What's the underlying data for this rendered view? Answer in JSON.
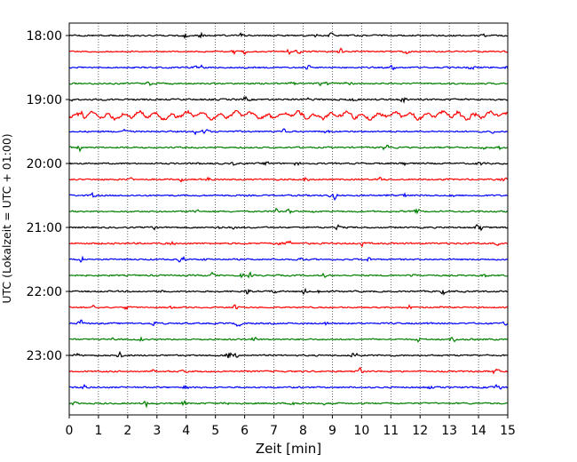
{
  "chart_data": {
    "type": "line",
    "title": "",
    "xlabel": "Zeit  [min]",
    "ylabel": "UTC (Lokalzeit = UTC + 01:00)",
    "xlim": [
      0,
      15
    ],
    "x_ticks": [
      "0",
      "1",
      "2",
      "3",
      "4",
      "5",
      "6",
      "7",
      "8",
      "9",
      "10",
      "11",
      "12",
      "13",
      "14",
      "15"
    ],
    "y_ticks": [
      "18:00",
      "19:00",
      "20:00",
      "21:00",
      "22:00",
      "23:00"
    ],
    "grid": "vertical dotted lines at each minute",
    "trace_interval_minutes": 15,
    "trace_colors": [
      "#000000",
      "#ff0000",
      "#0000ff",
      "#008000"
    ],
    "trace_start_times": [
      "18:00",
      "18:15",
      "18:30",
      "18:45",
      "19:00",
      "19:15",
      "19:30",
      "19:45",
      "20:00",
      "20:15",
      "20:30",
      "20:45",
      "21:00",
      "21:15",
      "21:30",
      "21:45",
      "22:00",
      "22:15",
      "22:30",
      "22:45",
      "23:00",
      "23:15",
      "23:30",
      "23:45"
    ],
    "noise_level": [
      0.45,
      0.4,
      0.45,
      0.45,
      0.5,
      1.0,
      0.45,
      0.45,
      0.45,
      0.45,
      0.45,
      0.45,
      0.45,
      0.5,
      0.45,
      0.45,
      0.45,
      0.4,
      0.45,
      0.45,
      0.45,
      0.45,
      0.45,
      0.45
    ],
    "series": [
      {
        "values": "synthetic seismogram noise, one trace per 15 minutes"
      }
    ]
  }
}
